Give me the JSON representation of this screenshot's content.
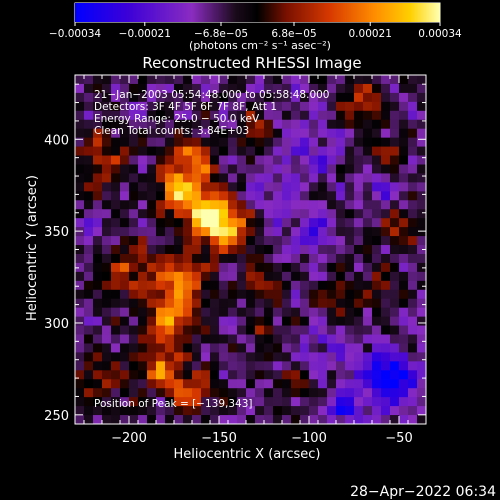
{
  "chart_data": {
    "type": "heatmap",
    "title": "Reconstructed RHESSI Image",
    "xlabel": "Heliocentric X (arcsec)",
    "ylabel": "Heliocentric Y (arcsec)",
    "xlim": [
      -230,
      -35
    ],
    "ylim": [
      245,
      435
    ],
    "x_ticks": [
      -200,
      -150,
      -100,
      -50
    ],
    "y_ticks": [
      250,
      300,
      350,
      400
    ],
    "x_tick_labels": [
      "−200",
      "−150",
      "−100",
      "−50"
    ],
    "y_tick_labels": [
      "250",
      "300",
      "350",
      "400"
    ],
    "colorbar": {
      "ticks": [
        -0.00034,
        -0.00021,
        -6.8e-05,
        6.8e-05,
        0.00021,
        0.00034
      ],
      "tick_labels": [
        "−0.00034",
        "−0.00021",
        "−6.8e−05",
        "6.8e−05",
        "0.00021",
        "0.00034"
      ],
      "range": [
        -0.00034,
        0.00034
      ],
      "units_label": "(photons cm⁻² s⁻¹ asec⁻²)",
      "colormap": [
        "#0000ff",
        "#3a00d8",
        "#8a2cc0",
        "#1a0a1a",
        "#000000",
        "#7a1000",
        "#d83a00",
        "#ff8c00",
        "#ffd000",
        "#ffffb0"
      ]
    },
    "annotations": {
      "time_range": "21−Jan−2003 05:54:48.000 to 05:58:48.000",
      "detectors": "Detectors: 3F 4F 5F 6F 7F 8F, Att 1",
      "energy": "Energy Range: 25.0 − 50.0 keV",
      "method": "Clean     Total counts: 3.84E+03",
      "peak": "Position of Peak = [−139,343]"
    },
    "peak": {
      "x": -139,
      "y": 343
    },
    "blobs": [
      {
        "x": -147,
        "y": 352,
        "r": 14,
        "v": 0.00034
      },
      {
        "x": -160,
        "y": 362,
        "r": 13,
        "v": 0.00031
      },
      {
        "x": -165,
        "y": 388,
        "r": 12,
        "v": 0.00028
      },
      {
        "x": -175,
        "y": 372,
        "r": 10,
        "v": 0.00024
      },
      {
        "x": -170,
        "y": 322,
        "r": 14,
        "v": 0.00028
      },
      {
        "x": -178,
        "y": 300,
        "r": 13,
        "v": 0.00026
      },
      {
        "x": -182,
        "y": 275,
        "r": 12,
        "v": 0.00024
      },
      {
        "x": -165,
        "y": 262,
        "r": 11,
        "v": 0.00022
      },
      {
        "x": -200,
        "y": 330,
        "r": 16,
        "v": 0.00018
      },
      {
        "x": -215,
        "y": 390,
        "r": 16,
        "v": 0.00016
      },
      {
        "x": -215,
        "y": 270,
        "r": 14,
        "v": 0.00015
      },
      {
        "x": -128,
        "y": 322,
        "r": 11,
        "v": 0.00014
      },
      {
        "x": -125,
        "y": 293,
        "r": 9,
        "v": 0.00012
      },
      {
        "x": -130,
        "y": 405,
        "r": 10,
        "v": 0.00013
      },
      {
        "x": -70,
        "y": 420,
        "r": 12,
        "v": 0.00016
      },
      {
        "x": -55,
        "y": 392,
        "r": 10,
        "v": 0.00013
      },
      {
        "x": -48,
        "y": 350,
        "r": 11,
        "v": 0.00015
      },
      {
        "x": -85,
        "y": 312,
        "r": 12,
        "v": 0.00012
      },
      {
        "x": -60,
        "y": 320,
        "r": 10,
        "v": 0.00013
      },
      {
        "x": -110,
        "y": 265,
        "r": 9,
        "v": 0.00011
      },
      {
        "x": -98,
        "y": 350,
        "r": 10,
        "v": -0.00018
      },
      {
        "x": -55,
        "y": 270,
        "r": 15,
        "v": -0.0003
      },
      {
        "x": -80,
        "y": 255,
        "r": 8,
        "v": -0.00022
      },
      {
        "x": -100,
        "y": 395,
        "r": 16,
        "v": -0.0001
      },
      {
        "x": -88,
        "y": 290,
        "r": 12,
        "v": -0.0001
      },
      {
        "x": -220,
        "y": 352,
        "r": 7,
        "v": -0.00015
      },
      {
        "x": -120,
        "y": 365,
        "r": 13,
        "v": -8e-05
      },
      {
        "x": -60,
        "y": 372,
        "r": 9,
        "v": -9e-05
      }
    ],
    "background": -7.5e-05
  },
  "timestamp": "28−Apr−2022 06:34"
}
